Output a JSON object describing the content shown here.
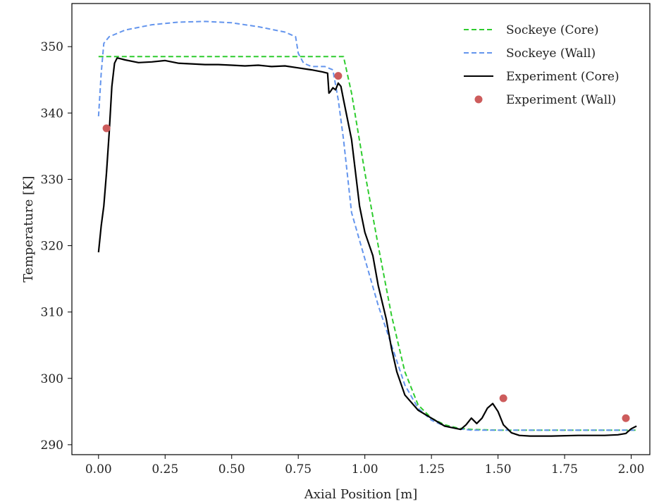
{
  "chart_data": {
    "type": "line",
    "title": "",
    "xlabel": "Axial Position [m]",
    "ylabel": "Temperature [K]",
    "xlim": [
      -0.1,
      2.07
    ],
    "ylim": [
      288.5,
      356.5
    ],
    "xticks": [
      0.0,
      0.25,
      0.5,
      0.75,
      1.0,
      1.25,
      1.5,
      1.75,
      2.0
    ],
    "xtick_labels": [
      "0.00",
      "0.25",
      "0.50",
      "0.75",
      "1.00",
      "1.25",
      "1.50",
      "1.75",
      "2.00"
    ],
    "yticks": [
      290,
      300,
      310,
      320,
      330,
      340,
      350
    ],
    "ytick_labels": [
      "290",
      "300",
      "310",
      "320",
      "330",
      "340",
      "350"
    ],
    "grid": false,
    "legend_position": "top-right",
    "series": [
      {
        "name": "Sockeye (Core)",
        "style": "dashed",
        "color": "#2ecc2e",
        "x": [
          0.0,
          0.2,
          0.4,
          0.6,
          0.8,
          0.92,
          0.95,
          1.0,
          1.05,
          1.1,
          1.15,
          1.2,
          1.25,
          1.3,
          1.35,
          1.4,
          1.5,
          1.75,
          2.0,
          2.02
        ],
        "y": [
          348.5,
          348.5,
          348.5,
          348.5,
          348.5,
          348.5,
          343.0,
          331.0,
          320.0,
          309.5,
          301.0,
          296.0,
          294.0,
          293.0,
          292.5,
          292.3,
          292.2,
          292.2,
          292.2,
          292.2
        ]
      },
      {
        "name": "Sockeye (Wall)",
        "style": "dashed",
        "color": "#6495ed",
        "x": [
          0.0,
          0.01,
          0.02,
          0.04,
          0.1,
          0.2,
          0.3,
          0.4,
          0.5,
          0.6,
          0.7,
          0.74,
          0.75,
          0.77,
          0.8,
          0.85,
          0.88,
          0.9,
          0.92,
          0.95,
          1.0,
          1.05,
          1.1,
          1.15,
          1.2,
          1.25,
          1.3,
          1.35,
          1.4,
          1.5,
          1.75,
          2.0,
          2.02
        ],
        "y": [
          339.5,
          346.0,
          350.5,
          351.5,
          352.5,
          353.3,
          353.7,
          353.8,
          353.6,
          353.0,
          352.2,
          351.5,
          349.0,
          347.5,
          347.0,
          347.0,
          346.5,
          342.0,
          336.0,
          325.0,
          318.0,
          311.0,
          305.0,
          299.0,
          295.5,
          293.7,
          292.8,
          292.4,
          292.2,
          292.2,
          292.2,
          292.2,
          292.2
        ]
      },
      {
        "name": "Experiment (Core)",
        "style": "solid",
        "color": "#000000",
        "x": [
          0.0,
          0.01,
          0.02,
          0.03,
          0.04,
          0.05,
          0.06,
          0.07,
          0.08,
          0.1,
          0.15,
          0.2,
          0.25,
          0.3,
          0.35,
          0.4,
          0.45,
          0.5,
          0.55,
          0.6,
          0.65,
          0.7,
          0.75,
          0.8,
          0.84,
          0.86,
          0.865,
          0.87,
          0.88,
          0.89,
          0.9,
          0.91,
          0.92,
          0.95,
          0.98,
          1.0,
          1.03,
          1.05,
          1.08,
          1.1,
          1.12,
          1.15,
          1.2,
          1.25,
          1.3,
          1.36,
          1.38,
          1.4,
          1.42,
          1.44,
          1.46,
          1.48,
          1.5,
          1.52,
          1.55,
          1.58,
          1.62,
          1.7,
          1.8,
          1.9,
          1.95,
          1.98,
          2.0,
          2.02
        ],
        "y": [
          319.0,
          323.0,
          326.0,
          331.0,
          337.0,
          344.0,
          347.5,
          348.3,
          348.2,
          348.0,
          347.6,
          347.7,
          347.9,
          347.5,
          347.4,
          347.3,
          347.3,
          347.2,
          347.1,
          347.2,
          347.0,
          347.1,
          346.8,
          346.5,
          346.2,
          346.0,
          343.0,
          343.2,
          343.8,
          343.5,
          344.5,
          344.0,
          342.0,
          336.0,
          326.0,
          322.0,
          318.5,
          314.0,
          309.0,
          304.5,
          301.0,
          297.5,
          295.2,
          294.0,
          292.8,
          292.3,
          293.0,
          294.0,
          293.2,
          294.0,
          295.5,
          296.2,
          295.0,
          293.0,
          291.8,
          291.4,
          291.3,
          291.3,
          291.4,
          291.4,
          291.5,
          291.7,
          292.4,
          292.8
        ]
      },
      {
        "name": "Experiment (Wall)",
        "style": "markers",
        "color": "#cd5c5c",
        "x": [
          0.03,
          0.9,
          1.52,
          1.98
        ],
        "y": [
          337.7,
          345.6,
          297.0,
          294.0
        ]
      }
    ]
  }
}
